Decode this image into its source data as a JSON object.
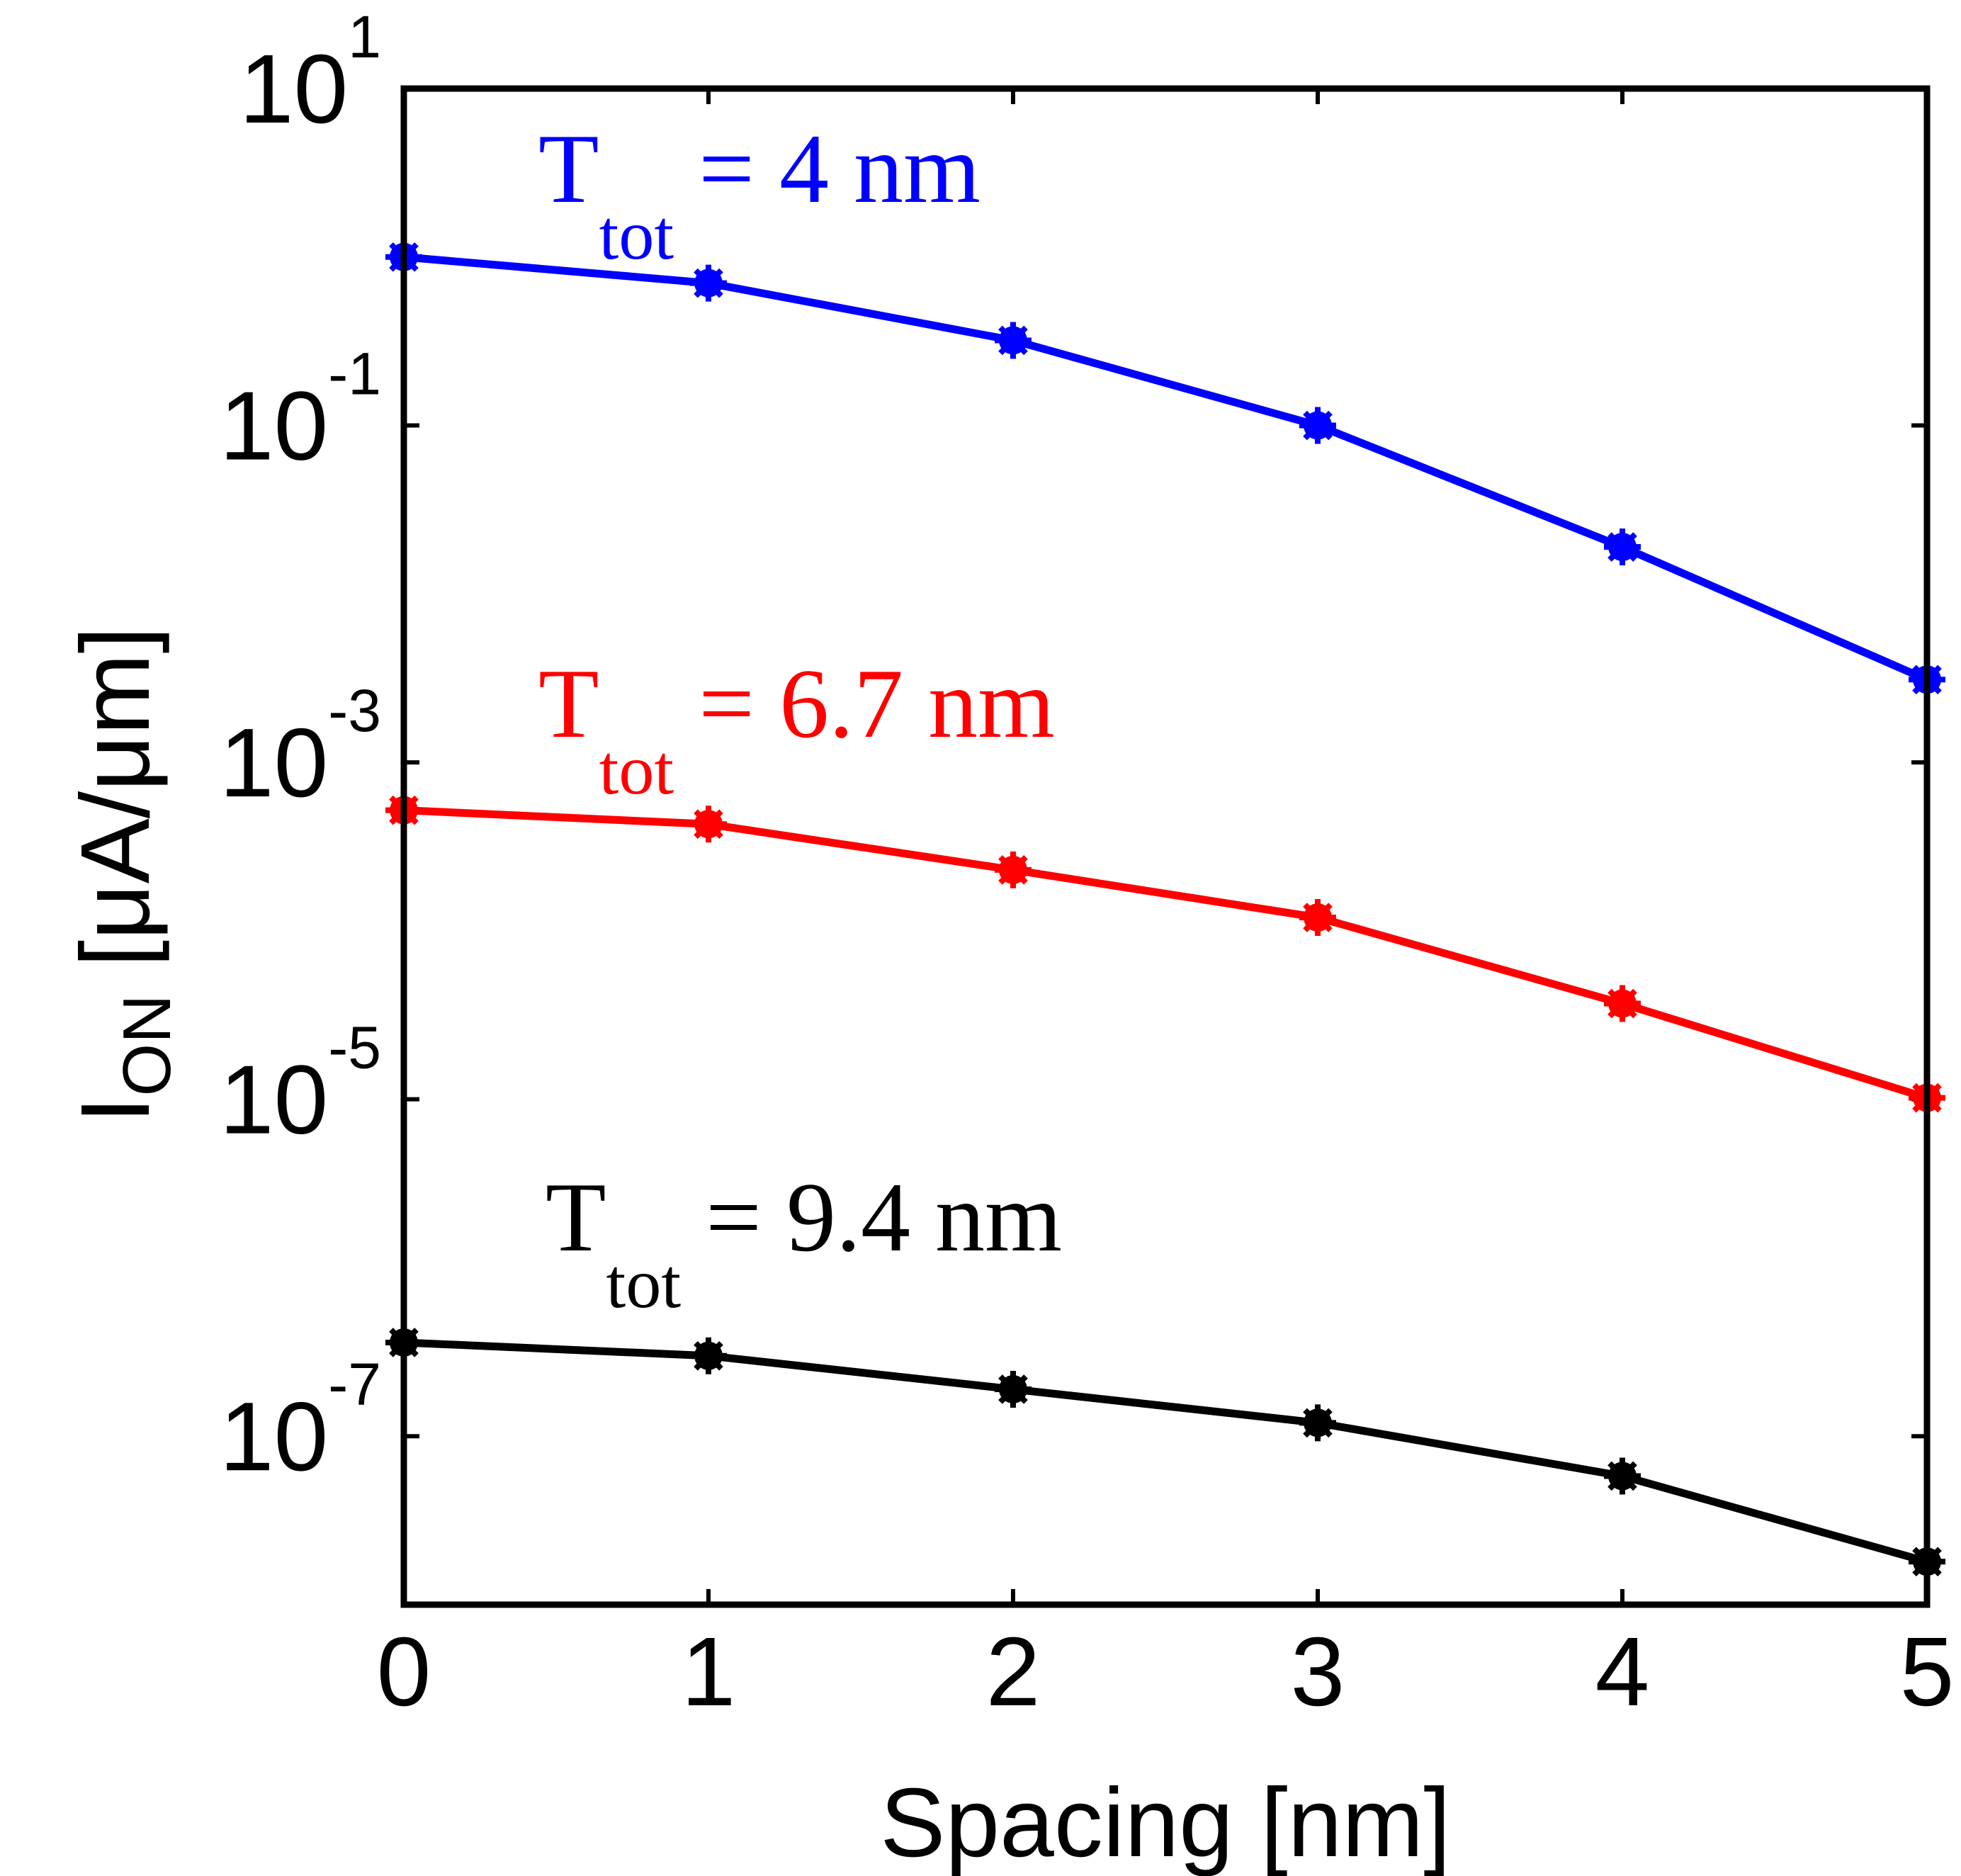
{
  "chart_data": {
    "type": "line",
    "title": "",
    "xlabel": "Spacing [nm]",
    "ylabel": {
      "main": "I",
      "subscript": "ON",
      "unit": " [μA/μm]"
    },
    "x": [
      0,
      1,
      2,
      3,
      4,
      5
    ],
    "xlim": [
      0,
      5
    ],
    "xticks": [
      "0",
      "1",
      "2",
      "3",
      "4",
      "5"
    ],
    "yscale": "log",
    "ylim": [
      1e-08,
      10
    ],
    "yticks": [
      {
        "value": 10,
        "base": "10",
        "exp": "1"
      },
      {
        "value": 0.1,
        "base": "10",
        "exp": "-1"
      },
      {
        "value": 0.001,
        "base": "10",
        "exp": "-3"
      },
      {
        "value": 1e-05,
        "base": "10",
        "exp": "-5"
      },
      {
        "value": 1e-07,
        "base": "10",
        "exp": "-7"
      }
    ],
    "grid": false,
    "series": [
      {
        "name": "T_tot = 4 nm",
        "color": "#0000ff",
        "label_main": "T",
        "label_sub": "tot",
        "label_rest": " = 4 nm",
        "values": [
          1.0,
          0.7,
          0.32,
          0.1,
          0.019,
          0.0031
        ]
      },
      {
        "name": "T_tot = 6.7 nm",
        "color": "#ff0000",
        "label_main": "T",
        "label_sub": "tot",
        "label_rest": " = 6.7 nm",
        "values": [
          0.00052,
          0.00043,
          0.00023,
          0.00012,
          3.7e-05,
          1.02e-05
        ]
      },
      {
        "name": "T_tot = 9.4 nm",
        "color": "#000000",
        "label_main": "T",
        "label_sub": "tot",
        "label_rest": " = 9.4 nm",
        "values": [
          3.6e-07,
          3e-07,
          1.9e-07,
          1.2e-07,
          5.8e-08,
          1.8e-08
        ]
      }
    ]
  }
}
